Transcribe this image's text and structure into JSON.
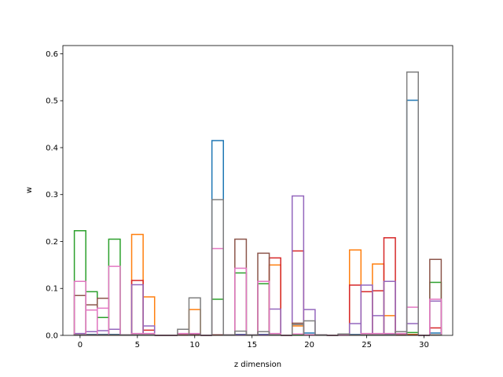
{
  "chart_data": {
    "type": "step",
    "title": "",
    "xlabel": "z dimension",
    "ylabel": "w",
    "xlim": [
      -1.5,
      32.5
    ],
    "ylim": [
      0,
      0.6175
    ],
    "x_ticks": [
      0,
      5,
      10,
      15,
      20,
      25,
      30
    ],
    "y_ticks": [
      0.0,
      0.1,
      0.2,
      0.3,
      0.4,
      0.5,
      0.6
    ],
    "x_tick_labels": [
      "0",
      "5",
      "10",
      "15",
      "20",
      "25",
      "30"
    ],
    "y_tick_labels": [
      "0.0",
      "0.1",
      "0.2",
      "0.3",
      "0.4",
      "0.5",
      "0.6"
    ],
    "grid": false,
    "legend": false,
    "x": [
      0,
      1,
      2,
      3,
      4,
      5,
      6,
      7,
      8,
      9,
      10,
      11,
      12,
      13,
      14,
      15,
      16,
      17,
      18,
      19,
      20,
      21,
      22,
      23,
      24,
      25,
      26,
      27,
      28,
      29,
      30,
      31
    ],
    "series": [
      {
        "color": "#1f77b4",
        "values": [
          0.001,
          0.002,
          0.002,
          0.002,
          0.001,
          0.001,
          0.001,
          0.0,
          0.0,
          0.001,
          0.002,
          0.0,
          0.415,
          0.001,
          0.002,
          0.001,
          0.002,
          0.001,
          0.0,
          0.001,
          0.005,
          0.001,
          0.0,
          0.001,
          0.002,
          0.001,
          0.001,
          0.002,
          0.001,
          0.501,
          0.0,
          0.005
        ]
      },
      {
        "color": "#ff7f0e",
        "values": [
          0.001,
          0.001,
          0.001,
          0.001,
          0.001,
          0.215,
          0.082,
          0.0,
          0.0,
          0.001,
          0.055,
          0.0,
          0.001,
          0.001,
          0.001,
          0.001,
          0.001,
          0.15,
          0.0,
          0.02,
          0.001,
          0.001,
          0.0,
          0.001,
          0.182,
          0.001,
          0.152,
          0.042,
          0.001,
          0.002,
          0.0,
          0.001
        ]
      },
      {
        "color": "#2ca02c",
        "values": [
          0.223,
          0.093,
          0.038,
          0.205,
          0.001,
          0.001,
          0.001,
          0.0,
          0.0,
          0.001,
          0.001,
          0.0,
          0.077,
          0.001,
          0.133,
          0.001,
          0.11,
          0.001,
          0.0,
          0.001,
          0.001,
          0.001,
          0.0,
          0.001,
          0.001,
          0.001,
          0.001,
          0.001,
          0.001,
          0.006,
          0.0,
          0.113
        ]
      },
      {
        "color": "#d62728",
        "values": [
          0.001,
          0.001,
          0.001,
          0.001,
          0.001,
          0.117,
          0.011,
          0.0,
          0.0,
          0.001,
          0.001,
          0.0,
          0.001,
          0.001,
          0.001,
          0.001,
          0.001,
          0.165,
          0.0,
          0.18,
          0.001,
          0.001,
          0.0,
          0.001,
          0.107,
          0.093,
          0.095,
          0.208,
          0.001,
          0.001,
          0.0,
          0.016
        ]
      },
      {
        "color": "#9467bd",
        "values": [
          0.004,
          0.008,
          0.01,
          0.013,
          0.001,
          0.108,
          0.02,
          0.0,
          0.0,
          0.001,
          0.001,
          0.0,
          0.001,
          0.001,
          0.001,
          0.001,
          0.001,
          0.056,
          0.0,
          0.297,
          0.055,
          0.001,
          0.0,
          0.001,
          0.025,
          0.107,
          0.042,
          0.115,
          0.001,
          0.025,
          0.0,
          0.073
        ]
      },
      {
        "color": "#8c564b",
        "values": [
          0.085,
          0.065,
          0.079,
          0.001,
          0.001,
          0.001,
          0.001,
          0.0,
          0.0,
          0.001,
          0.001,
          0.0,
          0.001,
          0.001,
          0.205,
          0.001,
          0.175,
          0.001,
          0.0,
          0.026,
          0.001,
          0.001,
          0.0,
          0.001,
          0.001,
          0.001,
          0.001,
          0.001,
          0.001,
          0.001,
          0.0,
          0.162
        ]
      },
      {
        "color": "#e377c2",
        "values": [
          0.115,
          0.054,
          0.058,
          0.147,
          0.001,
          0.004,
          0.004,
          0.0,
          0.0,
          0.004,
          0.004,
          0.0,
          0.185,
          0.001,
          0.143,
          0.001,
          0.115,
          0.004,
          0.0,
          0.003,
          0.001,
          0.001,
          0.0,
          0.001,
          0.001,
          0.004,
          0.004,
          0.004,
          0.004,
          0.06,
          0.0,
          0.077
        ]
      },
      {
        "color": "#7f7f7f",
        "values": [
          0.001,
          0.001,
          0.001,
          0.001,
          0.001,
          0.001,
          0.001,
          0.0,
          0.0,
          0.013,
          0.08,
          0.0,
          0.289,
          0.001,
          0.009,
          0.001,
          0.008,
          0.001,
          0.0,
          0.023,
          0.031,
          0.001,
          0.0,
          0.003,
          0.001,
          0.001,
          0.001,
          0.001,
          0.008,
          0.561,
          0.0,
          0.001
        ]
      }
    ]
  }
}
